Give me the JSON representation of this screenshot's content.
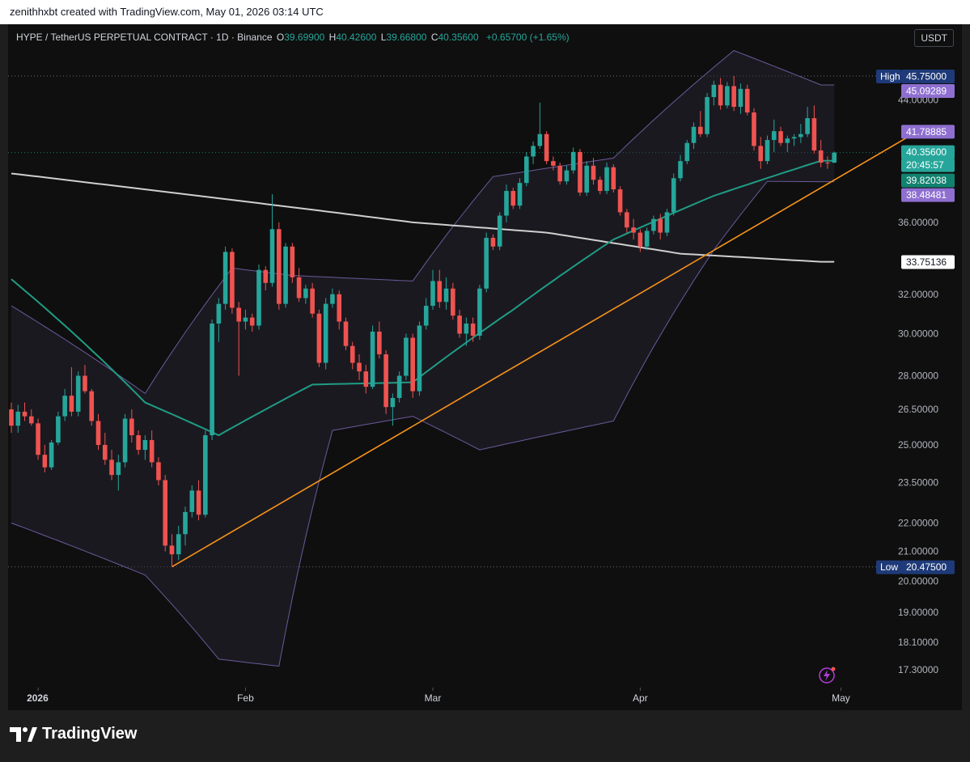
{
  "attribution": "zenithhxbt created with TradingView.com, May 01, 2026 03:14 UTC",
  "header": {
    "symbol": "HYPE / TetherUS PERPETUAL CONTRACT · 1D · Binance",
    "o_label": "O",
    "o_value": "39.69900",
    "h_label": "H",
    "h_value": "40.42600",
    "l_label": "L",
    "l_value": "39.66800",
    "c_label": "C",
    "c_value": "40.35600",
    "change": "+0.65700 (+1.65%)"
  },
  "currency_button": "USDT",
  "brand": "TradingView",
  "colors": {
    "up": "#26a69a",
    "down": "#ef5350",
    "ema_fast": "#1f9c84",
    "ma_slow": "#cfcfcf",
    "bollinger": "#6a5a9a",
    "trendline": "#f7931a",
    "high_low_tag": "#1e3a78",
    "bb_tag": "#8e6fd0"
  },
  "chart_data": {
    "type": "candlestick",
    "title": "HYPE / TetherUS PERPETUAL CONTRACT · 1D · Binance",
    "ylabel": "",
    "y_scale": "log",
    "ylim": [
      16.8,
      49.8
    ],
    "x_tick_labels": [
      "2026",
      "Feb",
      "Mar",
      "Apr",
      "May"
    ],
    "y_tick_labels": [
      "44.00000",
      "36.00000",
      "32.00000",
      "30.00000",
      "28.00000",
      "26.50000",
      "25.00000",
      "23.50000",
      "22.00000",
      "21.00000",
      "20.00000",
      "19.00000",
      "18.10000",
      "17.30000"
    ],
    "price_tags": [
      {
        "label": "High",
        "value": "45.75000",
        "kind": "high"
      },
      {
        "label": "",
        "value": "45.09289",
        "kind": "bb-upper"
      },
      {
        "label": "",
        "value": "41.78885",
        "kind": "bb-basis"
      },
      {
        "label": "",
        "value": "40.35600",
        "kind": "last"
      },
      {
        "label": "",
        "value": "20:45:57",
        "kind": "countdown"
      },
      {
        "label": "",
        "value": "39.82038",
        "kind": "ema"
      },
      {
        "label": "",
        "value": "38.48481",
        "kind": "bb-lower"
      },
      {
        "label": "",
        "value": "33.75136",
        "kind": "ma"
      },
      {
        "label": "Low",
        "value": "20.47500",
        "kind": "low"
      }
    ],
    "high": 45.75,
    "low": 20.475,
    "last": 40.356,
    "start_date": "2025-12-28",
    "ohlc": [
      [
        26.5,
        26.8,
        25.5,
        25.8
      ],
      [
        25.8,
        26.7,
        25.5,
        26.4
      ],
      [
        26.4,
        26.8,
        26.0,
        26.2
      ],
      [
        26.2,
        26.5,
        25.8,
        25.9
      ],
      [
        25.9,
        26.1,
        24.4,
        24.6
      ],
      [
        24.6,
        25.0,
        23.9,
        24.1
      ],
      [
        24.1,
        25.2,
        24.0,
        25.1
      ],
      [
        25.1,
        26.4,
        25.0,
        26.2
      ],
      [
        26.2,
        27.4,
        26.0,
        27.1
      ],
      [
        27.1,
        28.4,
        26.2,
        26.4
      ],
      [
        26.4,
        28.2,
        26.2,
        28.0
      ],
      [
        28.0,
        28.5,
        27.2,
        27.3
      ],
      [
        27.3,
        27.4,
        25.8,
        26.0
      ],
      [
        26.0,
        26.3,
        24.8,
        25.0
      ],
      [
        25.0,
        25.5,
        24.2,
        24.4
      ],
      [
        24.4,
        24.8,
        23.6,
        23.8
      ],
      [
        23.8,
        24.6,
        23.2,
        24.3
      ],
      [
        24.3,
        26.3,
        24.1,
        26.1
      ],
      [
        26.1,
        26.5,
        25.1,
        25.4
      ],
      [
        25.4,
        25.6,
        24.6,
        24.8
      ],
      [
        24.8,
        25.4,
        24.4,
        25.2
      ],
      [
        25.2,
        25.6,
        24.1,
        24.3
      ],
      [
        24.3,
        24.5,
        23.4,
        23.6
      ],
      [
        23.6,
        23.8,
        21.0,
        21.2
      ],
      [
        21.2,
        21.6,
        20.5,
        20.9
      ],
      [
        20.9,
        21.9,
        20.7,
        21.6
      ],
      [
        21.6,
        22.6,
        21.2,
        22.4
      ],
      [
        22.4,
        23.4,
        22.2,
        23.2
      ],
      [
        23.2,
        23.6,
        22.1,
        22.3
      ],
      [
        22.3,
        25.6,
        22.2,
        25.4
      ],
      [
        25.4,
        30.7,
        25.2,
        30.5
      ],
      [
        30.5,
        31.8,
        29.6,
        31.5
      ],
      [
        31.5,
        34.6,
        31.2,
        34.3
      ],
      [
        34.3,
        34.5,
        31.0,
        31.3
      ],
      [
        31.3,
        31.6,
        28.0,
        30.6
      ],
      [
        30.6,
        31.2,
        30.2,
        30.8
      ],
      [
        30.8,
        31.0,
        30.1,
        30.4
      ],
      [
        30.4,
        33.6,
        30.2,
        33.3
      ],
      [
        33.3,
        33.5,
        32.2,
        32.6
      ],
      [
        32.6,
        37.7,
        32.4,
        35.6
      ],
      [
        35.6,
        36.0,
        31.2,
        31.5
      ],
      [
        31.5,
        34.8,
        31.3,
        34.6
      ],
      [
        34.6,
        34.8,
        32.6,
        32.9
      ],
      [
        32.9,
        33.4,
        31.6,
        31.8
      ],
      [
        31.8,
        32.5,
        31.5,
        32.3
      ],
      [
        32.3,
        32.6,
        30.8,
        31.0
      ],
      [
        31.0,
        31.2,
        28.4,
        28.6
      ],
      [
        28.6,
        31.8,
        28.3,
        31.5
      ],
      [
        31.5,
        32.3,
        31.3,
        32.0
      ],
      [
        32.0,
        32.2,
        30.2,
        30.6
      ],
      [
        30.6,
        30.8,
        29.2,
        29.4
      ],
      [
        29.4,
        29.6,
        28.3,
        28.6
      ],
      [
        28.6,
        29.0,
        27.8,
        28.2
      ],
      [
        28.2,
        28.5,
        27.2,
        27.5
      ],
      [
        27.5,
        30.4,
        27.4,
        30.1
      ],
      [
        30.1,
        30.6,
        28.8,
        29.0
      ],
      [
        29.0,
        29.2,
        26.3,
        26.6
      ],
      [
        26.6,
        27.2,
        25.8,
        27.0
      ],
      [
        27.0,
        28.2,
        26.8,
        28.0
      ],
      [
        28.0,
        30.0,
        27.8,
        29.8
      ],
      [
        29.8,
        30.0,
        27.0,
        27.3
      ],
      [
        27.3,
        30.6,
        27.1,
        30.4
      ],
      [
        30.4,
        31.8,
        30.2,
        31.4
      ],
      [
        31.4,
        33.3,
        31.2,
        32.7
      ],
      [
        32.7,
        33.3,
        31.3,
        31.6
      ],
      [
        31.6,
        32.9,
        31.2,
        32.3
      ],
      [
        32.3,
        32.6,
        30.7,
        30.9
      ],
      [
        30.9,
        31.2,
        29.8,
        30.0
      ],
      [
        30.0,
        30.8,
        29.4,
        30.5
      ],
      [
        30.5,
        30.8,
        29.6,
        29.9
      ],
      [
        29.9,
        32.5,
        29.7,
        32.3
      ],
      [
        32.3,
        35.4,
        32.1,
        35.1
      ],
      [
        35.1,
        35.3,
        34.4,
        34.6
      ],
      [
        34.6,
        36.6,
        34.4,
        36.4
      ],
      [
        36.4,
        38.3,
        36.0,
        37.9
      ],
      [
        37.9,
        38.1,
        36.8,
        37.0
      ],
      [
        37.0,
        38.7,
        36.8,
        38.4
      ],
      [
        38.4,
        40.4,
        38.2,
        40.1
      ],
      [
        40.1,
        41.1,
        39.6,
        40.8
      ],
      [
        40.8,
        43.8,
        40.6,
        41.6
      ],
      [
        41.6,
        41.8,
        39.6,
        39.8
      ],
      [
        39.8,
        40.1,
        39.2,
        39.5
      ],
      [
        39.5,
        39.7,
        38.3,
        38.5
      ],
      [
        38.5,
        39.5,
        38.3,
        39.2
      ],
      [
        39.2,
        40.7,
        39.0,
        40.4
      ],
      [
        40.4,
        40.6,
        37.6,
        37.8
      ],
      [
        37.8,
        39.8,
        37.6,
        39.5
      ],
      [
        39.5,
        40.0,
        38.3,
        38.6
      ],
      [
        38.6,
        38.8,
        37.7,
        37.9
      ],
      [
        37.9,
        39.7,
        37.7,
        39.4
      ],
      [
        39.4,
        39.6,
        37.8,
        38.0
      ],
      [
        38.0,
        38.2,
        36.4,
        36.6
      ],
      [
        36.6,
        36.8,
        35.4,
        35.7
      ],
      [
        35.7,
        36.2,
        35.0,
        35.4
      ],
      [
        35.4,
        35.6,
        34.3,
        34.6
      ],
      [
        34.6,
        35.7,
        34.4,
        35.5
      ],
      [
        35.5,
        36.4,
        35.3,
        36.2
      ],
      [
        36.2,
        36.5,
        35.0,
        35.4
      ],
      [
        35.4,
        36.8,
        35.2,
        36.6
      ],
      [
        36.6,
        39.0,
        36.4,
        38.7
      ],
      [
        38.7,
        40.2,
        38.5,
        39.8
      ],
      [
        39.8,
        41.2,
        39.6,
        41.0
      ],
      [
        41.0,
        42.4,
        40.6,
        42.1
      ],
      [
        42.1,
        43.2,
        41.4,
        41.6
      ],
      [
        41.6,
        44.5,
        41.4,
        44.2
      ],
      [
        44.2,
        45.4,
        43.6,
        45.1
      ],
      [
        45.1,
        45.6,
        43.3,
        43.6
      ],
      [
        43.6,
        45.3,
        43.4,
        45.0
      ],
      [
        45.0,
        45.75,
        43.2,
        43.5
      ],
      [
        43.5,
        45.2,
        43.0,
        44.8
      ],
      [
        44.8,
        45.1,
        42.9,
        43.1
      ],
      [
        43.1,
        43.4,
        40.5,
        40.8
      ],
      [
        40.8,
        41.4,
        39.3,
        39.8
      ],
      [
        39.8,
        41.5,
        39.6,
        41.2
      ],
      [
        41.2,
        42.6,
        40.4,
        41.8
      ],
      [
        41.8,
        42.1,
        40.8,
        41.0
      ],
      [
        41.0,
        41.5,
        40.4,
        41.3
      ],
      [
        41.3,
        41.6,
        40.8,
        41.4
      ],
      [
        41.4,
        42.3,
        41.0,
        41.6
      ],
      [
        41.6,
        43.5,
        41.4,
        42.7
      ],
      [
        42.7,
        43.6,
        40.3,
        40.5
      ],
      [
        40.5,
        41.2,
        39.4,
        39.7
      ],
      [
        39.7,
        40.1,
        39.3,
        39.699
      ],
      [
        39.699,
        40.426,
        39.668,
        40.356
      ]
    ],
    "ema_at_ticks": [
      [
        0,
        32.8
      ],
      [
        20,
        26.8
      ],
      [
        31,
        25.4
      ],
      [
        45,
        27.6
      ],
      [
        60,
        27.7
      ],
      [
        75,
        31.2
      ],
      [
        90,
        35.0
      ],
      [
        105,
        37.6
      ],
      [
        121,
        39.82
      ]
    ],
    "ma_at_ticks": [
      [
        0,
        39.0
      ],
      [
        20,
        38.0
      ],
      [
        40,
        37.0
      ],
      [
        60,
        36.0
      ],
      [
        80,
        35.4
      ],
      [
        100,
        34.2
      ],
      [
        121,
        33.75
      ]
    ],
    "bb_upper_at_ticks": [
      [
        0,
        31.4
      ],
      [
        20,
        27.2
      ],
      [
        33,
        33.4
      ],
      [
        42,
        33.0
      ],
      [
        60,
        32.7
      ],
      [
        72,
        38.8
      ],
      [
        90,
        40.0
      ],
      [
        108,
        47.7
      ],
      [
        121,
        45.09
      ]
    ],
    "bb_lower_at_ticks": [
      [
        0,
        22.0
      ],
      [
        20,
        20.2
      ],
      [
        31,
        17.6
      ],
      [
        40,
        17.4
      ],
      [
        48,
        25.6
      ],
      [
        60,
        26.2
      ],
      [
        70,
        24.8
      ],
      [
        90,
        26.0
      ],
      [
        105,
        34.4
      ],
      [
        113,
        38.5
      ],
      [
        121,
        38.48
      ]
    ],
    "trendline": {
      "start_index": 24,
      "start_value": 20.475,
      "end_index": 134,
      "end_value": 41.4
    }
  }
}
